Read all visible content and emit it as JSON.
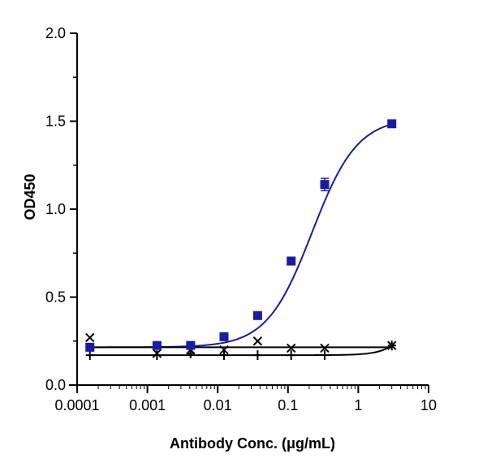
{
  "chart_data": {
    "type": "scatter",
    "title": "",
    "xlabel": "Antibody Conc. (μg/mL)",
    "ylabel": "OD450",
    "x_scale": "log",
    "xlim": [
      0.0001,
      10
    ],
    "ylim": [
      0,
      2.0
    ],
    "x_ticks": [
      {
        "value": 0.0001,
        "label": "0.0001"
      },
      {
        "value": 0.001,
        "label": "0.001"
      },
      {
        "value": 0.01,
        "label": "0.01"
      },
      {
        "value": 0.1,
        "label": "0.1"
      },
      {
        "value": 1,
        "label": "1"
      },
      {
        "value": 10,
        "label": "10"
      }
    ],
    "y_ticks": [
      {
        "value": 0,
        "label": "0.0"
      },
      {
        "value": 0.5,
        "label": "0.5"
      },
      {
        "value": 1.0,
        "label": "1.0"
      },
      {
        "value": 1.5,
        "label": "1.5"
      },
      {
        "value": 2.0,
        "label": "2.0"
      }
    ],
    "grid": false,
    "legend": "none",
    "series": [
      {
        "marker": "square",
        "color": "#1a1aa6",
        "x": [
          0.000152,
          0.00137,
          0.00412,
          0.0123,
          0.037,
          0.111,
          0.333,
          3
        ],
        "y": [
          0.215,
          0.225,
          0.225,
          0.275,
          0.395,
          0.705,
          1.14,
          1.485
        ],
        "error": [
          0.012,
          0.012,
          0.01,
          0.01,
          0.01,
          0.015,
          0.035,
          0.01
        ],
        "fit": {
          "bottom": 0.215,
          "top": 1.52,
          "ec50": 0.22,
          "hill": 1.35
        }
      },
      {
        "marker": "cross",
        "color": "#000000",
        "x": [
          0.000152,
          0.00137,
          0.00412,
          0.0123,
          0.037,
          0.111,
          0.333,
          3
        ],
        "y": [
          0.27,
          0.18,
          0.2,
          0.2,
          0.25,
          0.21,
          0.21,
          0.225
        ],
        "fit_level": 0.215
      },
      {
        "marker": "plus",
        "color": "#000000",
        "x": [
          0.000152,
          0.00137,
          0.00412,
          0.0123,
          0.037,
          0.111,
          0.333,
          3
        ],
        "y": [
          0.17,
          0.17,
          0.18,
          0.17,
          0.17,
          0.17,
          0.17,
          0.225
        ],
        "fit_level": 0.17
      }
    ]
  }
}
